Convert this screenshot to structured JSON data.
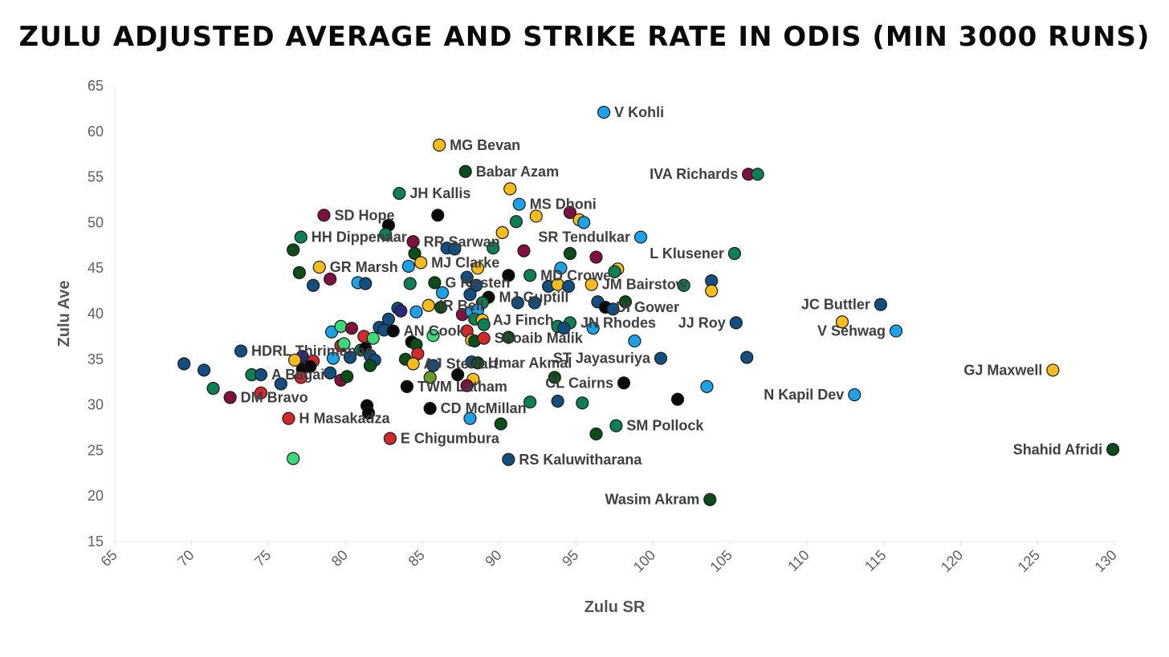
{
  "chart_data": {
    "type": "scatter",
    "title": "Zulu Adjusted Average and Strike Rate in ODIs (min 3000 runs)",
    "xlabel": "Zulu SR",
    "ylabel": "Zulu Ave",
    "xlim": [
      65,
      130
    ],
    "ylim": [
      15,
      65
    ],
    "xticks": [
      "65",
      "70",
      "75",
      "80",
      "85",
      "90",
      "95",
      "100",
      "105",
      "110",
      "115",
      "120",
      "125",
      "130"
    ],
    "yticks": [
      "15",
      "20",
      "25",
      "30",
      "35",
      "40",
      "45",
      "50",
      "55",
      "60",
      "65"
    ],
    "colors": {
      "gold": "#F5BC1C",
      "sky": "#1EA1E6",
      "navy": "#124F80",
      "green": "#0E7E54",
      "dark": "#0B4D18",
      "maroon": "#80103F",
      "red": "#D22A2A",
      "black": "#0A0A0A",
      "mint": "#3BD97A",
      "indigo": "#2A2A7A",
      "olive": "#6E9A2A"
    },
    "points": [
      {
        "x": 96.8,
        "y": 62.1,
        "c": "sky",
        "label": "V Kohli"
      },
      {
        "x": 86.1,
        "y": 58.5,
        "c": "gold",
        "label": "MG Bevan"
      },
      {
        "x": 87.8,
        "y": 55.6,
        "c": "dark",
        "label": "Babar Azam"
      },
      {
        "x": 106.2,
        "y": 55.3,
        "c": "maroon",
        "label": "IVA Richards"
      },
      {
        "x": 106.8,
        "y": 55.3,
        "c": "green",
        "label": ""
      },
      {
        "x": 83.5,
        "y": 53.2,
        "c": "green",
        "label": "JH Kallis"
      },
      {
        "x": 90.7,
        "y": 53.7,
        "c": "gold",
        "label": ""
      },
      {
        "x": 91.3,
        "y": 52.0,
        "c": "sky",
        "label": "MS Dhoni"
      },
      {
        "x": 78.6,
        "y": 50.8,
        "c": "maroon",
        "label": "SD Hope"
      },
      {
        "x": 86.0,
        "y": 50.8,
        "c": "black",
        "label": ""
      },
      {
        "x": 92.4,
        "y": 50.7,
        "c": "gold",
        "label": ""
      },
      {
        "x": 94.6,
        "y": 51.1,
        "c": "maroon",
        "label": ""
      },
      {
        "x": 95.2,
        "y": 50.3,
        "c": "gold",
        "label": ""
      },
      {
        "x": 95.5,
        "y": 50.0,
        "c": "sky",
        "label": ""
      },
      {
        "x": 91.1,
        "y": 50.1,
        "c": "green",
        "label": ""
      },
      {
        "x": 82.8,
        "y": 49.7,
        "c": "black",
        "label": ""
      },
      {
        "x": 77.1,
        "y": 48.4,
        "c": "green",
        "label": "HH Dippenaar"
      },
      {
        "x": 82.6,
        "y": 48.7,
        "c": "green",
        "label": ""
      },
      {
        "x": 84.4,
        "y": 47.9,
        "c": "maroon",
        "label": "RR Sarwan"
      },
      {
        "x": 90.2,
        "y": 48.9,
        "c": "gold",
        "label": ""
      },
      {
        "x": 99.2,
        "y": 48.4,
        "c": "sky",
        "label": "SR Tendulkar"
      },
      {
        "x": 76.6,
        "y": 47.0,
        "c": "dark",
        "label": ""
      },
      {
        "x": 84.5,
        "y": 46.6,
        "c": "dark",
        "label": ""
      },
      {
        "x": 86.6,
        "y": 47.2,
        "c": "navy",
        "label": ""
      },
      {
        "x": 87.1,
        "y": 47.1,
        "c": "navy",
        "label": ""
      },
      {
        "x": 89.6,
        "y": 47.2,
        "c": "green",
        "label": ""
      },
      {
        "x": 91.6,
        "y": 46.9,
        "c": "maroon",
        "label": ""
      },
      {
        "x": 94.6,
        "y": 46.6,
        "c": "dark",
        "label": ""
      },
      {
        "x": 96.3,
        "y": 46.2,
        "c": "maroon",
        "label": ""
      },
      {
        "x": 105.3,
        "y": 46.6,
        "c": "green",
        "label": "L Klusener"
      },
      {
        "x": 78.3,
        "y": 45.1,
        "c": "gold",
        "label": "GR Marsh"
      },
      {
        "x": 84.1,
        "y": 45.2,
        "c": "sky",
        "label": ""
      },
      {
        "x": 84.9,
        "y": 45.6,
        "c": "gold",
        "label": "MJ Clarke"
      },
      {
        "x": 88.6,
        "y": 45.0,
        "c": "gold",
        "label": ""
      },
      {
        "x": 94.0,
        "y": 45.0,
        "c": "sky",
        "label": ""
      },
      {
        "x": 97.7,
        "y": 44.9,
        "c": "gold",
        "label": ""
      },
      {
        "x": 97.5,
        "y": 44.6,
        "c": "green",
        "label": ""
      },
      {
        "x": 77.0,
        "y": 44.5,
        "c": "dark",
        "label": ""
      },
      {
        "x": 79.0,
        "y": 43.8,
        "c": "maroon",
        "label": ""
      },
      {
        "x": 77.9,
        "y": 43.1,
        "c": "navy",
        "label": ""
      },
      {
        "x": 80.8,
        "y": 43.4,
        "c": "sky",
        "label": ""
      },
      {
        "x": 81.3,
        "y": 43.3,
        "c": "navy",
        "label": ""
      },
      {
        "x": 84.2,
        "y": 43.3,
        "c": "green",
        "label": ""
      },
      {
        "x": 85.8,
        "y": 43.4,
        "c": "dark",
        "label": "G Kirsten"
      },
      {
        "x": 87.9,
        "y": 44.0,
        "c": "navy",
        "label": ""
      },
      {
        "x": 88.5,
        "y": 43.1,
        "c": "navy",
        "label": ""
      },
      {
        "x": 90.6,
        "y": 44.2,
        "c": "black",
        "label": ""
      },
      {
        "x": 92.0,
        "y": 44.2,
        "c": "green",
        "label": "MD Crowe"
      },
      {
        "x": 93.2,
        "y": 43.0,
        "c": "navy",
        "label": ""
      },
      {
        "x": 93.8,
        "y": 43.2,
        "c": "gold",
        "label": ""
      },
      {
        "x": 94.5,
        "y": 43.0,
        "c": "navy",
        "label": ""
      },
      {
        "x": 96.0,
        "y": 43.2,
        "c": "gold",
        "label": "JM Bairstow"
      },
      {
        "x": 102.0,
        "y": 43.1,
        "c": "green",
        "label": ""
      },
      {
        "x": 103.8,
        "y": 43.6,
        "c": "navy",
        "label": ""
      },
      {
        "x": 103.8,
        "y": 42.5,
        "c": "gold",
        "label": ""
      },
      {
        "x": 86.3,
        "y": 42.3,
        "c": "sky",
        "label": ""
      },
      {
        "x": 88.1,
        "y": 42.1,
        "c": "navy",
        "label": ""
      },
      {
        "x": 89.3,
        "y": 41.8,
        "c": "black",
        "label": "MJ Guptill"
      },
      {
        "x": 88.9,
        "y": 41.2,
        "c": "green",
        "label": ""
      },
      {
        "x": 91.2,
        "y": 41.2,
        "c": "navy",
        "label": ""
      },
      {
        "x": 92.3,
        "y": 41.2,
        "c": "navy",
        "label": ""
      },
      {
        "x": 96.4,
        "y": 41.3,
        "c": "navy",
        "label": ""
      },
      {
        "x": 96.9,
        "y": 40.7,
        "c": "black",
        "label": "DI Gower"
      },
      {
        "x": 97.4,
        "y": 40.5,
        "c": "navy",
        "label": ""
      },
      {
        "x": 98.2,
        "y": 41.3,
        "c": "dark",
        "label": ""
      },
      {
        "x": 85.4,
        "y": 40.9,
        "c": "gold",
        "label": "IR Bell"
      },
      {
        "x": 83.4,
        "y": 40.6,
        "c": "navy",
        "label": ""
      },
      {
        "x": 83.6,
        "y": 40.3,
        "c": "indigo",
        "label": ""
      },
      {
        "x": 84.6,
        "y": 40.2,
        "c": "sky",
        "label": ""
      },
      {
        "x": 86.2,
        "y": 40.7,
        "c": "dark",
        "label": ""
      },
      {
        "x": 87.6,
        "y": 39.9,
        "c": "maroon",
        "label": ""
      },
      {
        "x": 88.2,
        "y": 40.2,
        "c": "sky",
        "label": ""
      },
      {
        "x": 88.6,
        "y": 40.4,
        "c": "sky",
        "label": ""
      },
      {
        "x": 82.8,
        "y": 39.4,
        "c": "navy",
        "label": ""
      },
      {
        "x": 88.4,
        "y": 39.4,
        "c": "green",
        "label": ""
      },
      {
        "x": 88.9,
        "y": 39.3,
        "c": "gold",
        "label": "AJ Finch"
      },
      {
        "x": 89.0,
        "y": 38.8,
        "c": "green",
        "label": ""
      },
      {
        "x": 94.6,
        "y": 39.0,
        "c": "green",
        "label": "JN Rhodes"
      },
      {
        "x": 93.8,
        "y": 38.6,
        "c": "green",
        "label": ""
      },
      {
        "x": 94.2,
        "y": 38.4,
        "c": "navy",
        "label": ""
      },
      {
        "x": 96.1,
        "y": 38.4,
        "c": "sky",
        "label": ""
      },
      {
        "x": 105.4,
        "y": 39.0,
        "c": "navy",
        "label": "JJ Roy"
      },
      {
        "x": 114.8,
        "y": 41.0,
        "c": "navy",
        "label": "JC Buttler"
      },
      {
        "x": 112.3,
        "y": 39.1,
        "c": "gold",
        "label": ""
      },
      {
        "x": 115.8,
        "y": 38.1,
        "c": "sky",
        "label": "V Sehwag"
      },
      {
        "x": 79.1,
        "y": 38.0,
        "c": "sky",
        "label": ""
      },
      {
        "x": 79.7,
        "y": 38.6,
        "c": "mint",
        "label": ""
      },
      {
        "x": 80.4,
        "y": 38.4,
        "c": "maroon",
        "label": ""
      },
      {
        "x": 82.2,
        "y": 38.5,
        "c": "navy",
        "label": ""
      },
      {
        "x": 82.5,
        "y": 38.2,
        "c": "navy",
        "label": ""
      },
      {
        "x": 83.1,
        "y": 38.1,
        "c": "black",
        "label": "AN Cook"
      },
      {
        "x": 85.7,
        "y": 37.6,
        "c": "mint",
        "label": ""
      },
      {
        "x": 87.9,
        "y": 38.1,
        "c": "red",
        "label": ""
      },
      {
        "x": 81.2,
        "y": 37.5,
        "c": "red",
        "label": ""
      },
      {
        "x": 81.8,
        "y": 37.3,
        "c": "mint",
        "label": ""
      },
      {
        "x": 84.3,
        "y": 36.9,
        "c": "black",
        "label": ""
      },
      {
        "x": 84.6,
        "y": 36.6,
        "c": "dark",
        "label": ""
      },
      {
        "x": 88.2,
        "y": 37.1,
        "c": "gold",
        "label": ""
      },
      {
        "x": 88.4,
        "y": 37.0,
        "c": "dark",
        "label": ""
      },
      {
        "x": 89.0,
        "y": 37.3,
        "c": "red",
        "label": "Shoaib Malik"
      },
      {
        "x": 90.6,
        "y": 37.4,
        "c": "dark",
        "label": ""
      },
      {
        "x": 98.8,
        "y": 37.0,
        "c": "sky",
        "label": ""
      },
      {
        "x": 79.7,
        "y": 36.5,
        "c": "red",
        "label": ""
      },
      {
        "x": 79.9,
        "y": 36.7,
        "c": "mint",
        "label": ""
      },
      {
        "x": 81.0,
        "y": 36.0,
        "c": "green",
        "label": ""
      },
      {
        "x": 81.3,
        "y": 36.2,
        "c": "black",
        "label": ""
      },
      {
        "x": 73.2,
        "y": 35.9,
        "c": "navy",
        "label": "HDRL Thirimanne"
      },
      {
        "x": 77.2,
        "y": 35.3,
        "c": "indigo",
        "label": ""
      },
      {
        "x": 79.2,
        "y": 35.1,
        "c": "sky",
        "label": ""
      },
      {
        "x": 80.3,
        "y": 35.2,
        "c": "navy",
        "label": ""
      },
      {
        "x": 81.6,
        "y": 35.4,
        "c": "navy",
        "label": ""
      },
      {
        "x": 81.9,
        "y": 34.9,
        "c": "navy",
        "label": ""
      },
      {
        "x": 83.9,
        "y": 35.0,
        "c": "dark",
        "label": ""
      },
      {
        "x": 84.7,
        "y": 35.6,
        "c": "red",
        "label": ""
      },
      {
        "x": 84.4,
        "y": 34.5,
        "c": "gold",
        "label": "AJ Stewart"
      },
      {
        "x": 85.7,
        "y": 34.3,
        "c": "navy",
        "label": ""
      },
      {
        "x": 88.2,
        "y": 34.7,
        "c": "navy",
        "label": ""
      },
      {
        "x": 88.6,
        "y": 34.6,
        "c": "dark",
        "label": "Umar Akmal"
      },
      {
        "x": 100.5,
        "y": 35.1,
        "c": "navy",
        "label": "ST Jayasuriya"
      },
      {
        "x": 106.1,
        "y": 35.2,
        "c": "navy",
        "label": ""
      },
      {
        "x": 69.5,
        "y": 34.5,
        "c": "navy",
        "label": ""
      },
      {
        "x": 70.8,
        "y": 33.8,
        "c": "navy",
        "label": ""
      },
      {
        "x": 76.7,
        "y": 34.9,
        "c": "gold",
        "label": ""
      },
      {
        "x": 77.9,
        "y": 34.8,
        "c": "red",
        "label": ""
      },
      {
        "x": 77.2,
        "y": 33.9,
        "c": "black",
        "label": ""
      },
      {
        "x": 77.7,
        "y": 34.2,
        "c": "black",
        "label": ""
      },
      {
        "x": 73.9,
        "y": 33.3,
        "c": "green",
        "label": ""
      },
      {
        "x": 74.5,
        "y": 33.3,
        "c": "navy",
        "label": "A Bagai"
      },
      {
        "x": 77.1,
        "y": 33.0,
        "c": "red",
        "label": ""
      },
      {
        "x": 79.0,
        "y": 33.5,
        "c": "navy",
        "label": ""
      },
      {
        "x": 79.7,
        "y": 32.7,
        "c": "maroon",
        "label": ""
      },
      {
        "x": 80.1,
        "y": 33.1,
        "c": "dark",
        "label": ""
      },
      {
        "x": 81.6,
        "y": 34.3,
        "c": "dark",
        "label": ""
      },
      {
        "x": 85.5,
        "y": 33.0,
        "c": "olive",
        "label": ""
      },
      {
        "x": 87.3,
        "y": 33.3,
        "c": "black",
        "label": ""
      },
      {
        "x": 88.3,
        "y": 32.8,
        "c": "gold",
        "label": ""
      },
      {
        "x": 93.6,
        "y": 33.0,
        "c": "dark",
        "label": ""
      },
      {
        "x": 126.0,
        "y": 33.8,
        "c": "gold",
        "label": "GJ Maxwell"
      },
      {
        "x": 75.8,
        "y": 32.3,
        "c": "navy",
        "label": ""
      },
      {
        "x": 71.4,
        "y": 31.8,
        "c": "green",
        "label": ""
      },
      {
        "x": 74.5,
        "y": 31.3,
        "c": "red",
        "label": ""
      },
      {
        "x": 72.5,
        "y": 30.8,
        "c": "maroon",
        "label": "DM Bravo"
      },
      {
        "x": 84.0,
        "y": 32.0,
        "c": "black",
        "label": "TWM Latham"
      },
      {
        "x": 87.9,
        "y": 32.1,
        "c": "maroon",
        "label": ""
      },
      {
        "x": 98.1,
        "y": 32.4,
        "c": "black",
        "label": "CL Cairns"
      },
      {
        "x": 103.5,
        "y": 32.0,
        "c": "sky",
        "label": ""
      },
      {
        "x": 113.1,
        "y": 31.1,
        "c": "sky",
        "label": "N Kapil Dev"
      },
      {
        "x": 101.6,
        "y": 30.6,
        "c": "black",
        "label": ""
      },
      {
        "x": 92.0,
        "y": 30.3,
        "c": "green",
        "label": ""
      },
      {
        "x": 93.8,
        "y": 30.4,
        "c": "navy",
        "label": ""
      },
      {
        "x": 95.4,
        "y": 30.2,
        "c": "green",
        "label": ""
      },
      {
        "x": 81.4,
        "y": 29.9,
        "c": "black",
        "label": ""
      },
      {
        "x": 81.5,
        "y": 29.1,
        "c": "black",
        "label": ""
      },
      {
        "x": 85.5,
        "y": 29.6,
        "c": "black",
        "label": "CD McMillan"
      },
      {
        "x": 76.3,
        "y": 28.5,
        "c": "red",
        "label": "H Masakadza"
      },
      {
        "x": 88.1,
        "y": 28.5,
        "c": "sky",
        "label": ""
      },
      {
        "x": 90.1,
        "y": 27.9,
        "c": "dark",
        "label": ""
      },
      {
        "x": 97.6,
        "y": 27.7,
        "c": "green",
        "label": "SM Pollock"
      },
      {
        "x": 96.3,
        "y": 26.8,
        "c": "dark",
        "label": ""
      },
      {
        "x": 82.9,
        "y": 26.3,
        "c": "red",
        "label": "E Chigumbura"
      },
      {
        "x": 129.9,
        "y": 25.1,
        "c": "dark",
        "label": "Shahid Afridi"
      },
      {
        "x": 76.6,
        "y": 24.1,
        "c": "mint",
        "label": ""
      },
      {
        "x": 90.6,
        "y": 24.0,
        "c": "navy",
        "label": "RS Kaluwitharana"
      },
      {
        "x": 103.7,
        "y": 19.6,
        "c": "dark",
        "label": "Wasim Akram"
      }
    ],
    "left_labels": [
      "IVA Richards",
      "L Klusener",
      "JC Buttler",
      "JJ Roy",
      "V Sehwag",
      "GJ Maxwell",
      "N Kapil Dev",
      "Shahid Afridi",
      "Wasim Akram",
      "ST Jayasuriya",
      "CL Cairns",
      "SR Tendulkar"
    ]
  }
}
